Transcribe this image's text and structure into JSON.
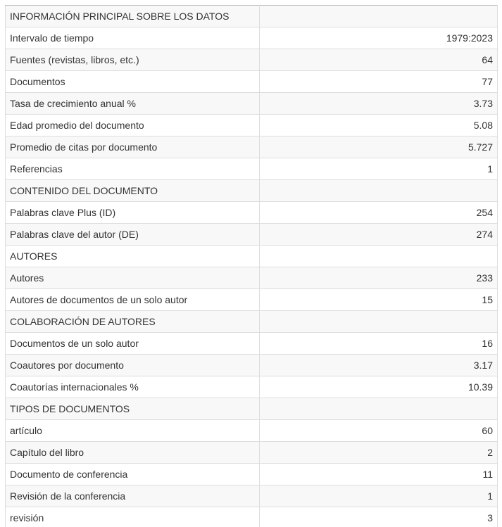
{
  "table": {
    "name": "main-information-table",
    "rows": [
      {
        "label": "INFORMACIÓN PRINCIPAL SOBRE LOS DATOS",
        "value": "",
        "section": true
      },
      {
        "label": "Intervalo de tiempo",
        "value": "1979:2023",
        "section": false
      },
      {
        "label": "Fuentes (revistas, libros, etc.)",
        "value": "64",
        "section": false
      },
      {
        "label": "Documentos",
        "value": "77",
        "section": false
      },
      {
        "label": "Tasa de crecimiento anual %",
        "value": "3.73",
        "section": false
      },
      {
        "label": "Edad promedio del documento",
        "value": "5.08",
        "section": false
      },
      {
        "label": "Promedio de citas por documento",
        "value": "5.727",
        "section": false
      },
      {
        "label": "Referencias",
        "value": "1",
        "section": false
      },
      {
        "label": "CONTENIDO DEL DOCUMENTO",
        "value": "",
        "section": true
      },
      {
        "label": "Palabras clave Plus (ID)",
        "value": "254",
        "section": false
      },
      {
        "label": "Palabras clave del autor (DE)",
        "value": "274",
        "section": false
      },
      {
        "label": "AUTORES",
        "value": "",
        "section": true
      },
      {
        "label": "Autores",
        "value": "233",
        "section": false
      },
      {
        "label": "Autores de documentos de un solo autor",
        "value": "15",
        "section": false
      },
      {
        "label": "COLABORACIÓN DE AUTORES",
        "value": "",
        "section": true
      },
      {
        "label": "Documentos de un solo autor",
        "value": "16",
        "section": false
      },
      {
        "label": "Coautores por documento",
        "value": "3.17",
        "section": false
      },
      {
        "label": "Coautorías internacionales %",
        "value": "10.39",
        "section": false
      },
      {
        "label": "TIPOS DE DOCUMENTOS",
        "value": "",
        "section": true
      },
      {
        "label": "artículo",
        "value": "60",
        "section": false
      },
      {
        "label": "Capítulo del libro",
        "value": "2",
        "section": false
      },
      {
        "label": "Documento de conferencia",
        "value": "11",
        "section": false
      },
      {
        "label": "Revisión de la conferencia",
        "value": "1",
        "section": false
      },
      {
        "label": "revisión",
        "value": "3",
        "section": false
      }
    ]
  },
  "colors": {
    "stripe": "#f8f8f8",
    "row_background": "#ffffff",
    "border": "#dddddd",
    "top_border": "#b8b8b8",
    "text": "#333333",
    "page_background": "#ffffff"
  }
}
